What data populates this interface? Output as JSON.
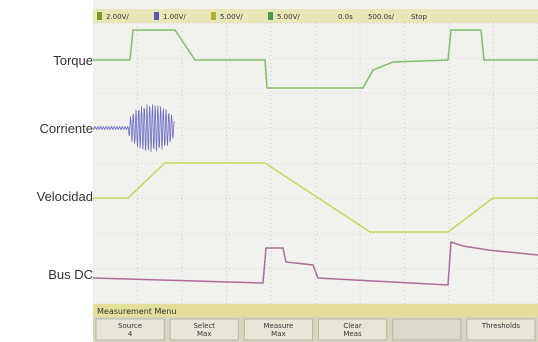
{
  "labels": [
    "Torque",
    "Corriente",
    "Velocidad",
    "Bus DC"
  ],
  "status_bar": {
    "channels": [
      "2.00V/",
      "1.00V/",
      "5.00V/",
      "5.00V/"
    ],
    "delay": "0.0s",
    "timebase": "500.0s/",
    "state": "Stop"
  },
  "menu": {
    "title": "Measurement Menu",
    "softkeys": [
      [
        "Source",
        "4"
      ],
      [
        "Select",
        "Max"
      ],
      [
        "Measure",
        "Max"
      ],
      [
        "Clear",
        "Meas"
      ],
      [],
      [
        "Thresholds"
      ]
    ]
  }
}
